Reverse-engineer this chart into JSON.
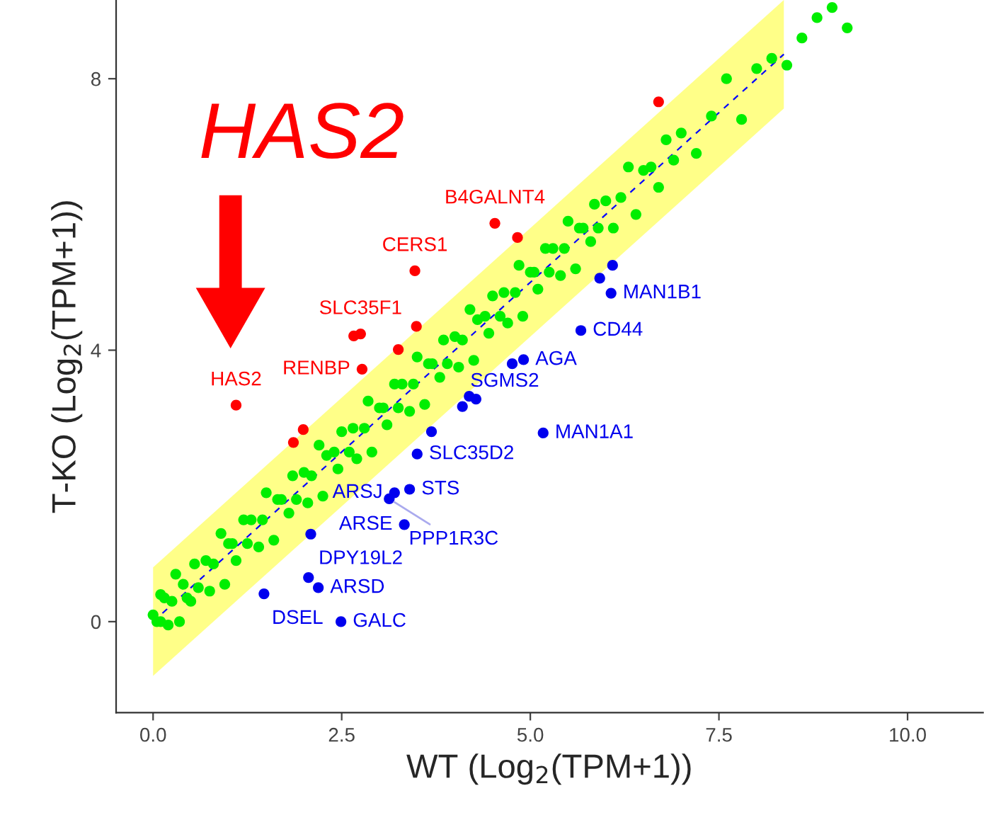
{
  "chart_data": {
    "type": "scatter",
    "xlabel": "WT (Log$_{2}$(TPM+1))",
    "ylabel": "T-KO (Log$_{2}$(TPM+1))",
    "xlim": [
      -0.49,
      11.0
    ],
    "ylim": [
      -1.34,
      9.16
    ],
    "xticks": [
      {
        "value": 0,
        "label": "0.0"
      },
      {
        "value": 2.5,
        "label": "2.5"
      },
      {
        "value": 5,
        "label": "5.0"
      },
      {
        "value": 7.5,
        "label": "7.5"
      },
      {
        "value": 10,
        "label": "10.0"
      }
    ],
    "yticks": [
      0,
      4,
      8
    ],
    "grid": false,
    "legend": false,
    "marker": "circle",
    "line_style": "dashed",
    "series": [
      {
        "type": "line",
        "marker": "none",
        "color": "#0000ff",
        "x": [
          0,
          8.36
        ],
        "values": [
          0,
          8.36
        ],
        "lower": [
          -0.8,
          7.56
        ],
        "upper": [
          0.8,
          9.16
        ]
      },
      {
        "color": "#00ee00",
        "x": [
          0.0,
          0.05,
          0.1,
          0.1,
          0.15,
          0.2,
          0.25,
          0.3,
          0.35,
          0.4,
          0.45,
          0.5,
          0.55,
          0.6,
          0.7,
          0.75,
          0.8,
          0.9,
          0.95,
          1.0,
          1.05,
          1.1,
          1.2,
          1.25,
          1.3,
          1.4,
          1.45,
          1.5,
          1.6,
          1.65,
          1.7,
          1.8,
          1.85,
          1.9,
          2.0,
          2.05,
          2.1,
          2.2,
          2.25,
          2.3,
          2.4,
          2.45,
          2.5,
          2.6,
          2.65,
          2.7,
          2.8,
          2.85,
          2.9,
          3.0,
          3.05,
          3.1,
          3.2,
          3.25,
          3.3,
          3.4,
          3.45,
          3.5,
          3.6,
          3.65,
          3.7,
          3.8,
          3.85,
          3.9,
          4.0,
          4.05,
          4.1,
          4.2,
          4.25,
          4.3,
          4.4,
          4.45,
          4.5,
          4.6,
          4.65,
          4.7,
          4.8,
          4.85,
          4.9,
          5.0,
          5.05,
          5.1,
          5.2,
          5.25,
          5.3,
          5.4,
          5.45,
          5.5,
          5.6,
          5.65,
          5.7,
          5.8,
          5.85,
          5.9,
          6.0,
          6.1,
          6.2,
          6.3,
          6.4,
          6.5,
          6.6,
          6.7,
          6.8,
          6.9,
          7.0,
          7.2,
          7.4,
          7.6,
          7.8,
          8.0,
          8.2,
          8.4,
          8.6,
          8.8,
          9.0,
          9.2
        ],
        "values": [
          0.1,
          0.0,
          0.4,
          0.0,
          0.35,
          -0.05,
          0.3,
          0.7,
          0.0,
          0.55,
          0.35,
          0.3,
          0.85,
          0.5,
          0.9,
          0.45,
          0.85,
          1.3,
          0.55,
          1.15,
          1.15,
          0.9,
          1.5,
          1.15,
          1.5,
          1.1,
          1.5,
          1.9,
          1.2,
          1.8,
          1.8,
          1.6,
          2.15,
          1.8,
          2.2,
          1.75,
          2.15,
          2.6,
          1.85,
          2.45,
          2.5,
          2.25,
          2.8,
          2.5,
          2.85,
          2.4,
          2.85,
          3.25,
          2.5,
          3.15,
          3.15,
          2.9,
          3.5,
          3.15,
          3.5,
          3.1,
          3.5,
          3.9,
          3.2,
          3.8,
          3.8,
          3.6,
          4.15,
          3.8,
          4.2,
          3.75,
          4.15,
          4.6,
          3.85,
          4.45,
          4.5,
          4.25,
          4.8,
          4.5,
          4.85,
          4.4,
          4.85,
          5.25,
          4.5,
          5.15,
          5.15,
          4.9,
          5.5,
          5.15,
          5.5,
          5.1,
          5.5,
          5.9,
          5.2,
          5.8,
          5.8,
          5.6,
          6.15,
          5.8,
          6.2,
          5.8,
          6.25,
          6.7,
          6.0,
          6.65,
          6.7,
          6.4,
          7.1,
          6.8,
          7.2,
          6.9,
          7.45,
          8.0,
          7.4,
          8.15,
          8.3,
          8.2,
          8.6,
          8.9,
          9.05,
          8.75
        ]
      },
      {
        "color": "#ff0000",
        "x": [
          4.53,
          4.83,
          3.47,
          2.66,
          2.75,
          3.49,
          3.25,
          2.77,
          1.1,
          1.99,
          1.86,
          6.7
        ],
        "values": [
          5.87,
          5.66,
          5.17,
          4.21,
          4.24,
          4.35,
          4.01,
          3.72,
          3.19,
          2.83,
          2.64,
          7.66
        ],
        "value_labels": [
          "B4GALNT4",
          null,
          "CERS1",
          null,
          "SLC35F1",
          null,
          null,
          "RENBP",
          "HAS2",
          null,
          null,
          null
        ]
      },
      {
        "color": "#0000ee",
        "x": [
          6.07,
          6.09,
          5.92,
          5.67,
          4.76,
          4.91,
          4.1,
          4.19,
          4.28,
          5.17,
          3.69,
          3.5,
          3.4,
          3.2,
          3.13,
          3.33,
          2.09,
          2.06,
          2.19,
          2.49,
          1.47
        ],
        "values": [
          4.84,
          5.25,
          5.06,
          4.29,
          3.8,
          3.86,
          3.17,
          3.32,
          3.28,
          2.78,
          2.8,
          2.47,
          1.95,
          1.9,
          1.81,
          1.43,
          1.29,
          0.65,
          0.5,
          0.0,
          0.41
        ],
        "value_labels": [
          "MAN1B1",
          null,
          null,
          "CD44",
          null,
          "AGA",
          "SGMS2",
          null,
          null,
          "MAN1A1",
          null,
          "SLC35D2",
          "STS",
          "ARSJ",
          "PPP1R3C",
          "ARSE",
          "DPY19L2",
          null,
          "ARSD",
          "GALC",
          "DSEL"
        ]
      }
    ],
    "annotations": [
      "HAS2"
    ]
  }
}
